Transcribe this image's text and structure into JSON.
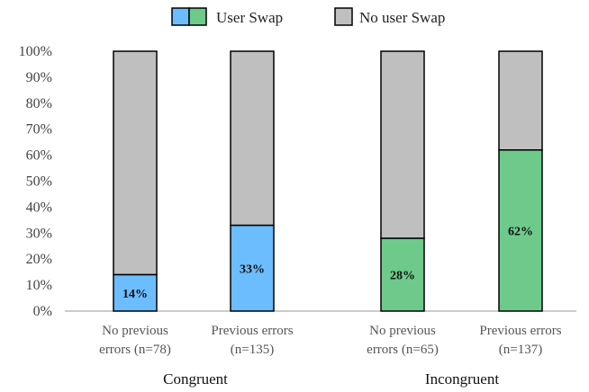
{
  "colors": {
    "user_swap_congruent": "#6cbdfd",
    "user_swap_incongruent": "#6dca8b",
    "no_user_swap": "#bfbfbf",
    "bar_stroke": "#000000",
    "axis": "#999999"
  },
  "legend": {
    "user_swap": "User Swap",
    "no_user_swap": "No user Swap"
  },
  "chart_data": {
    "type": "bar",
    "stacked": true,
    "percent_axis": true,
    "ylim": [
      0,
      100
    ],
    "yticks": [
      "0%",
      "10%",
      "20%",
      "30%",
      "40%",
      "50%",
      "60%",
      "70%",
      "80%",
      "90%",
      "100%"
    ],
    "legend_position": "top",
    "grid": false,
    "groups": [
      "Congruent",
      "Incongruent"
    ],
    "categories": [
      {
        "line1": "No previous",
        "line2": "errors (n=78)",
        "group": 0,
        "user_swap": 14,
        "label": "14%"
      },
      {
        "line1": "Previous errors",
        "line2": "(n=135)",
        "group": 0,
        "user_swap": 33,
        "label": "33%"
      },
      {
        "line1": "No previous",
        "line2": "errors (n=65)",
        "group": 1,
        "user_swap": 28,
        "label": "28%"
      },
      {
        "line1": "Previous errors",
        "line2": "(n=137)",
        "group": 1,
        "user_swap": 62,
        "label": "62%"
      }
    ]
  }
}
